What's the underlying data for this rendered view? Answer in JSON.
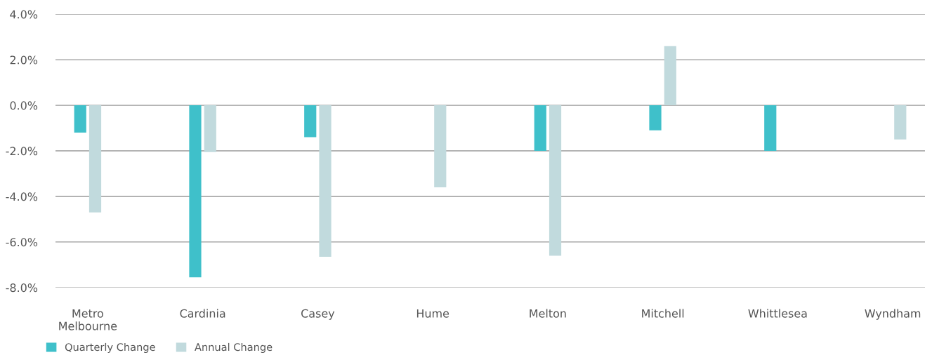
{
  "chart_data": {
    "type": "bar",
    "categories": [
      "Metro\nMelbourne",
      "Cardinia",
      "Casey",
      "Hume",
      "Melton",
      "Mitchell",
      "Whittlesea",
      "Wyndham"
    ],
    "series": [
      {
        "name": "Quarterly Change",
        "color": "#3fc0ca",
        "values": [
          -1.2,
          -7.55,
          -1.4,
          null,
          -2.0,
          -1.1,
          -2.0,
          null
        ]
      },
      {
        "name": "Annual Change",
        "color": "#c1dadd",
        "values": [
          -4.7,
          -2.05,
          -6.65,
          -3.6,
          -6.6,
          2.6,
          null,
          -1.5
        ]
      }
    ],
    "ylim": [
      -8,
      4
    ],
    "yticks": [
      {
        "value": -8,
        "label": "-8.0%"
      },
      {
        "value": -6,
        "label": "-6.0%"
      },
      {
        "value": -4,
        "label": "-4.0%"
      },
      {
        "value": -2,
        "label": "-2.0%"
      },
      {
        "value": 0,
        "label": "0.0%"
      },
      {
        "value": 2,
        "label": "2.0%"
      },
      {
        "value": 4,
        "label": "4.0%"
      }
    ],
    "grid": "y",
    "legend": "bottom left"
  }
}
